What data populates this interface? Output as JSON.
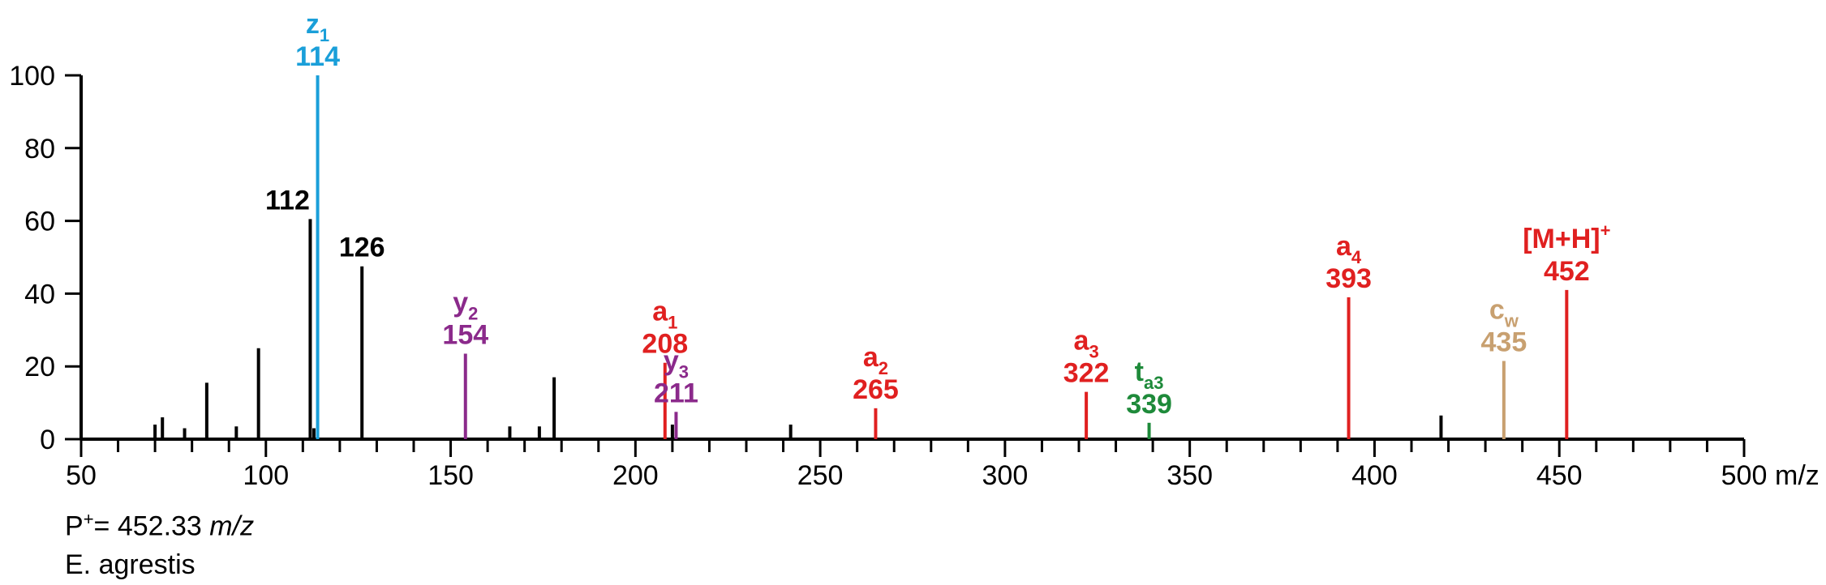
{
  "chart_data": {
    "type": "bar",
    "xlim": [
      50,
      500
    ],
    "ylim": [
      0,
      100
    ],
    "x_ticks": [
      50,
      100,
      150,
      200,
      250,
      300,
      350,
      400,
      450,
      500
    ],
    "y_ticks": [
      0,
      20,
      40,
      60,
      80,
      100
    ],
    "x_unit": "m/z",
    "peaks": [
      {
        "mz": 70,
        "intensity": 4,
        "color": "#000000"
      },
      {
        "mz": 72,
        "intensity": 6,
        "color": "#000000"
      },
      {
        "mz": 78,
        "intensity": 3,
        "color": "#000000"
      },
      {
        "mz": 84,
        "intensity": 15.5,
        "color": "#000000"
      },
      {
        "mz": 92,
        "intensity": 3.5,
        "color": "#000000"
      },
      {
        "mz": 98,
        "intensity": 25,
        "color": "#000000"
      },
      {
        "mz": 112,
        "intensity": 60.5,
        "color": "#000000",
        "label": "112"
      },
      {
        "mz": 113,
        "intensity": 3,
        "color": "#000000"
      },
      {
        "mz": 114,
        "intensity": 100,
        "color": "#1a9fd9",
        "ion": "z",
        "sub": "1",
        "label": "114"
      },
      {
        "mz": 126,
        "intensity": 47.5,
        "color": "#000000",
        "label": "126"
      },
      {
        "mz": 154,
        "intensity": 23.5,
        "color": "#8b2a8b",
        "ion": "y",
        "sub": "2",
        "label": "154"
      },
      {
        "mz": 166,
        "intensity": 3.5,
        "color": "#000000"
      },
      {
        "mz": 174,
        "intensity": 3.5,
        "color": "#000000"
      },
      {
        "mz": 178,
        "intensity": 17,
        "color": "#000000"
      },
      {
        "mz": 208,
        "intensity": 21,
        "color": "#e02020",
        "ion": "a",
        "sub": "1",
        "label": "208"
      },
      {
        "mz": 210,
        "intensity": 4,
        "color": "#000000"
      },
      {
        "mz": 211,
        "intensity": 7.5,
        "color": "#8b2a8b",
        "ion": "y",
        "sub": "3",
        "label": "211"
      },
      {
        "mz": 242,
        "intensity": 4,
        "color": "#000000"
      },
      {
        "mz": 265,
        "intensity": 8.5,
        "color": "#e02020",
        "ion": "a",
        "sub": "2",
        "label": "265"
      },
      {
        "mz": 322,
        "intensity": 13,
        "color": "#e02020",
        "ion": "a",
        "sub": "3",
        "label": "322"
      },
      {
        "mz": 339,
        "intensity": 4.5,
        "color": "#1e8a3a",
        "ion": "t",
        "sub": "a3",
        "label": "339"
      },
      {
        "mz": 393,
        "intensity": 39,
        "color": "#e02020",
        "ion": "a",
        "sub": "4",
        "label": "393"
      },
      {
        "mz": 418,
        "intensity": 6.5,
        "color": "#000000"
      },
      {
        "mz": 435,
        "intensity": 21.5,
        "color": "#c8a070",
        "ion": "c",
        "sub": "w",
        "label": "435"
      },
      {
        "mz": 452,
        "intensity": 41,
        "color": "#e02020",
        "ion": "[M+H]",
        "sup": "+",
        "label": "452"
      }
    ]
  },
  "footer": {
    "precursor_prefix": "P",
    "precursor_sup": "+",
    "precursor_value": "= 452.33 ",
    "precursor_unit": "m/z",
    "species": "E. agrestis"
  }
}
